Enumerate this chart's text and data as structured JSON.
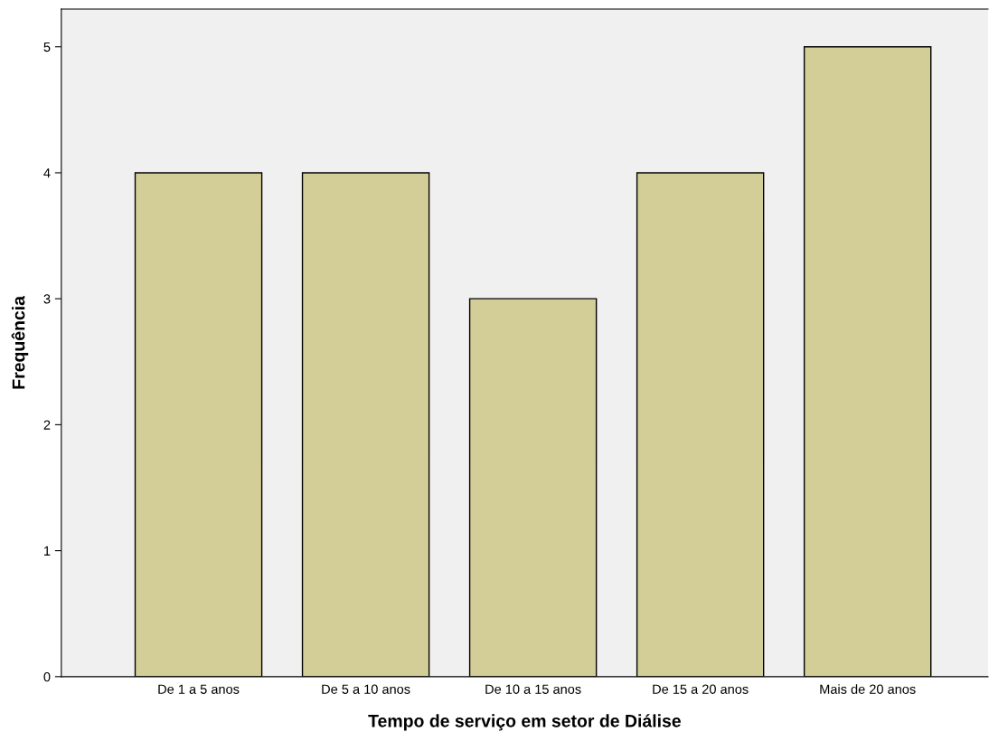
{
  "chart_data": {
    "type": "bar",
    "categories": [
      "De 1 a 5 anos",
      "De 5 a 10 anos",
      "De 10 a 15 anos",
      "De 15 a 20 anos",
      "Mais de 20 anos"
    ],
    "values": [
      4,
      4,
      3,
      4,
      5
    ],
    "color": "#d3ce97",
    "xlabel": "Tempo de serviço em setor de Diálise",
    "ylabel": "Frequência",
    "ylim": [
      0,
      5.3
    ],
    "yticks": [
      0,
      1,
      2,
      3,
      4,
      5
    ],
    "grid": false
  }
}
